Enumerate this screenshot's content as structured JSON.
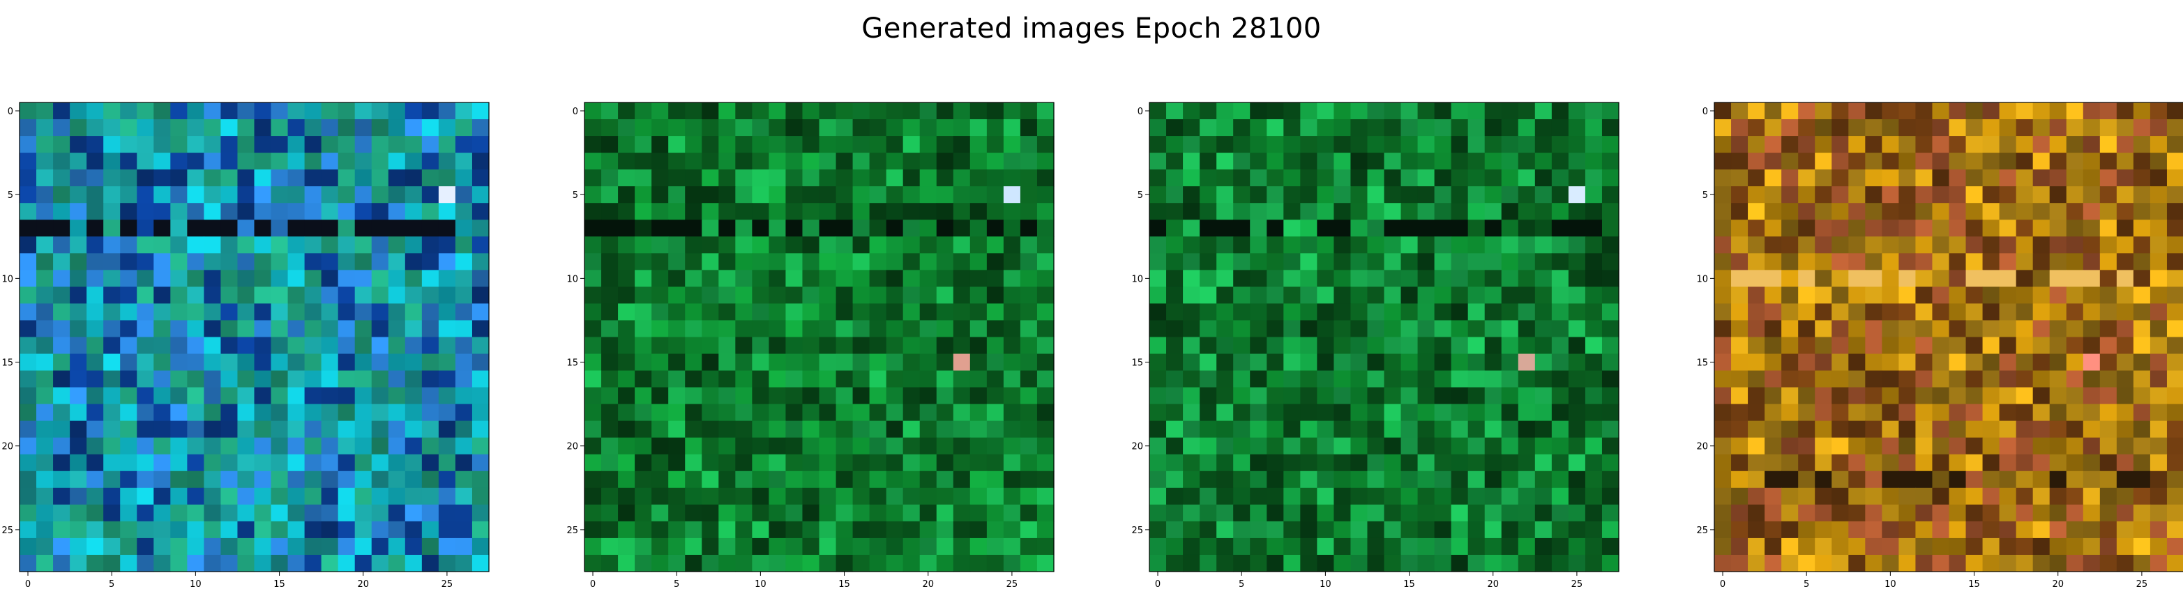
{
  "figure": {
    "title": "Generated images Epoch 28100"
  },
  "chart_data": [
    {
      "type": "heatmap",
      "panel": 1,
      "grid_size": 28,
      "x_ticks": [
        0,
        5,
        10,
        15,
        20,
        25
      ],
      "y_ticks": [
        0,
        5,
        10,
        15,
        20,
        25
      ],
      "xlim": [
        -0.5,
        27.5
      ],
      "ylim": [
        27.5,
        -0.5
      ],
      "dominant_palette": [
        "#1a9a9a",
        "#0fb3c2",
        "#2a7fd1",
        "#1f9f7a",
        "#0a3a8a"
      ],
      "noted_features": [
        {
          "row": 7,
          "label": "dark horizontal band",
          "color": "#0a0f1a"
        },
        {
          "row": 5,
          "col": 25,
          "label": "pale highlight",
          "color": "#e6f0ff"
        }
      ]
    },
    {
      "type": "heatmap",
      "panel": 2,
      "grid_size": 28,
      "x_ticks": [
        0,
        5,
        10,
        15,
        20,
        25
      ],
      "y_ticks": [
        0,
        5,
        10,
        15,
        20,
        25
      ],
      "xlim": [
        -0.5,
        27.5
      ],
      "ylim": [
        27.5,
        -0.5
      ],
      "dominant_palette": [
        "#0b7a2a",
        "#0f8f35",
        "#0a5a1e",
        "#17a34a",
        "#064015"
      ],
      "noted_features": [
        {
          "row": 7,
          "label": "dark horizontal band",
          "color": "#04140a"
        },
        {
          "row": 5,
          "col": 25,
          "label": "pale highlight",
          "color": "#cfe7ff"
        },
        {
          "row": 15,
          "col": 22,
          "label": "pink highlight",
          "color": "#e0a090"
        }
      ]
    },
    {
      "type": "heatmap",
      "panel": 3,
      "grid_size": 28,
      "x_ticks": [
        0,
        5,
        10,
        15,
        20,
        25
      ],
      "y_ticks": [
        0,
        5,
        10,
        15,
        20,
        25
      ],
      "xlim": [
        -0.5,
        27.5
      ],
      "ylim": [
        27.5,
        -0.5
      ],
      "dominant_palette": [
        "#0b7a2a",
        "#12963f",
        "#0a5a1e",
        "#1aa84f",
        "#064015"
      ],
      "noted_features": [
        {
          "row": 7,
          "label": "dark horizontal band",
          "color": "#04140a"
        },
        {
          "row": 5,
          "col": 25,
          "label": "pale highlight",
          "color": "#d9ecff"
        },
        {
          "row": 15,
          "col": 22,
          "label": "pink highlight",
          "color": "#d8a898"
        }
      ]
    },
    {
      "type": "heatmap",
      "panel": 4,
      "grid_size": 28,
      "x_ticks": [
        0,
        5,
        10,
        15,
        20,
        25
      ],
      "y_ticks": [
        0,
        5,
        10,
        15,
        20,
        25
      ],
      "xlim": [
        -0.5,
        27.5
      ],
      "ylim": [
        27.5,
        -0.5
      ],
      "dominant_palette": [
        "#b8860b",
        "#d4a017",
        "#a0522d",
        "#8b6914",
        "#6b3a10"
      ],
      "noted_features": [
        {
          "row": 10,
          "label": "bright horizontal band",
          "color": "#f0c060"
        },
        {
          "row": 22,
          "label": "dark horizontal band",
          "color": "#2a1a08"
        },
        {
          "row": 15,
          "col": 22,
          "label": "pink highlight",
          "color": "#ff9080"
        }
      ]
    }
  ]
}
